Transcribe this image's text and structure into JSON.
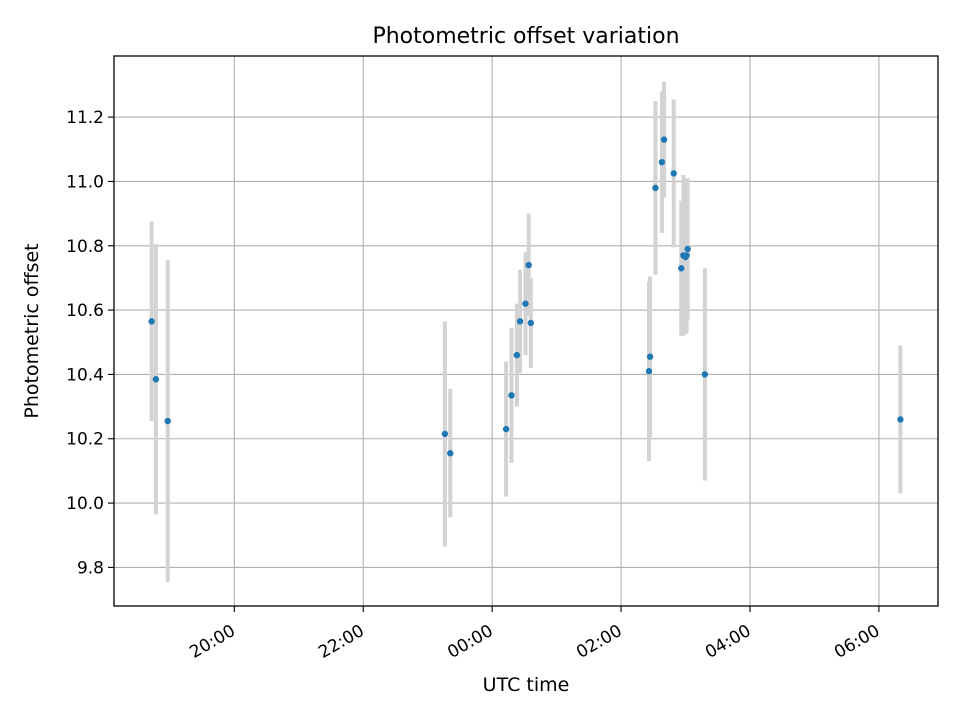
{
  "chart_data": {
    "type": "scatter",
    "title": "Photometric offset variation",
    "xlabel": "UTC time",
    "ylabel": "Photometric offset",
    "grid": true,
    "x_ticks": [
      "20:00",
      "22:00",
      "00:00",
      "02:00",
      "04:00",
      "06:00"
    ],
    "y_ticks": [
      "9.8",
      "10.0",
      "10.2",
      "10.4",
      "10.6",
      "10.8",
      "11.0",
      "11.2"
    ],
    "xlim": [
      "18:08",
      "06:55"
    ],
    "ylim": [
      9.68,
      11.39
    ],
    "errorbar_color": "#d3d3d3",
    "point_color": "#1f77b4",
    "series": [
      {
        "points": [
          {
            "t": "18:43",
            "y": 10.565,
            "err": 0.31
          },
          {
            "t": "18:47",
            "y": 10.385,
            "err": 0.42
          },
          {
            "t": "18:58",
            "y": 10.255,
            "err": 0.5
          },
          {
            "t": "23:16",
            "y": 10.215,
            "err": 0.35
          },
          {
            "t": "23:21",
            "y": 10.155,
            "err": 0.2
          },
          {
            "t": "00:13",
            "y": 10.23,
            "err": 0.21
          },
          {
            "t": "00:18",
            "y": 10.335,
            "err": 0.21
          },
          {
            "t": "00:23",
            "y": 10.46,
            "err": 0.16
          },
          {
            "t": "00:26",
            "y": 10.565,
            "err": 0.16
          },
          {
            "t": "00:31",
            "y": 10.62,
            "err": 0.16
          },
          {
            "t": "00:34",
            "y": 10.74,
            "err": 0.16
          },
          {
            "t": "00:36",
            "y": 10.56,
            "err": 0.14
          },
          {
            "t": "02:26",
            "y": 10.41,
            "err": 0.28
          },
          {
            "t": "02:27",
            "y": 10.455,
            "err": 0.25
          },
          {
            "t": "02:32",
            "y": 10.98,
            "err": 0.27
          },
          {
            "t": "02:38",
            "y": 11.06,
            "err": 0.22
          },
          {
            "t": "02:40",
            "y": 11.13,
            "err": 0.18
          },
          {
            "t": "02:49",
            "y": 11.025,
            "err": 0.23
          },
          {
            "t": "02:56",
            "y": 10.73,
            "err": 0.21
          },
          {
            "t": "02:58",
            "y": 10.77,
            "err": 0.25
          },
          {
            "t": "03:00",
            "y": 10.765,
            "err": 0.24
          },
          {
            "t": "03:01",
            "y": 10.77,
            "err": 0.24
          },
          {
            "t": "03:02",
            "y": 10.79,
            "err": 0.22
          },
          {
            "t": "03:18",
            "y": 10.4,
            "err": 0.33
          },
          {
            "t": "06:20",
            "y": 10.26,
            "err": 0.23
          }
        ]
      }
    ]
  }
}
